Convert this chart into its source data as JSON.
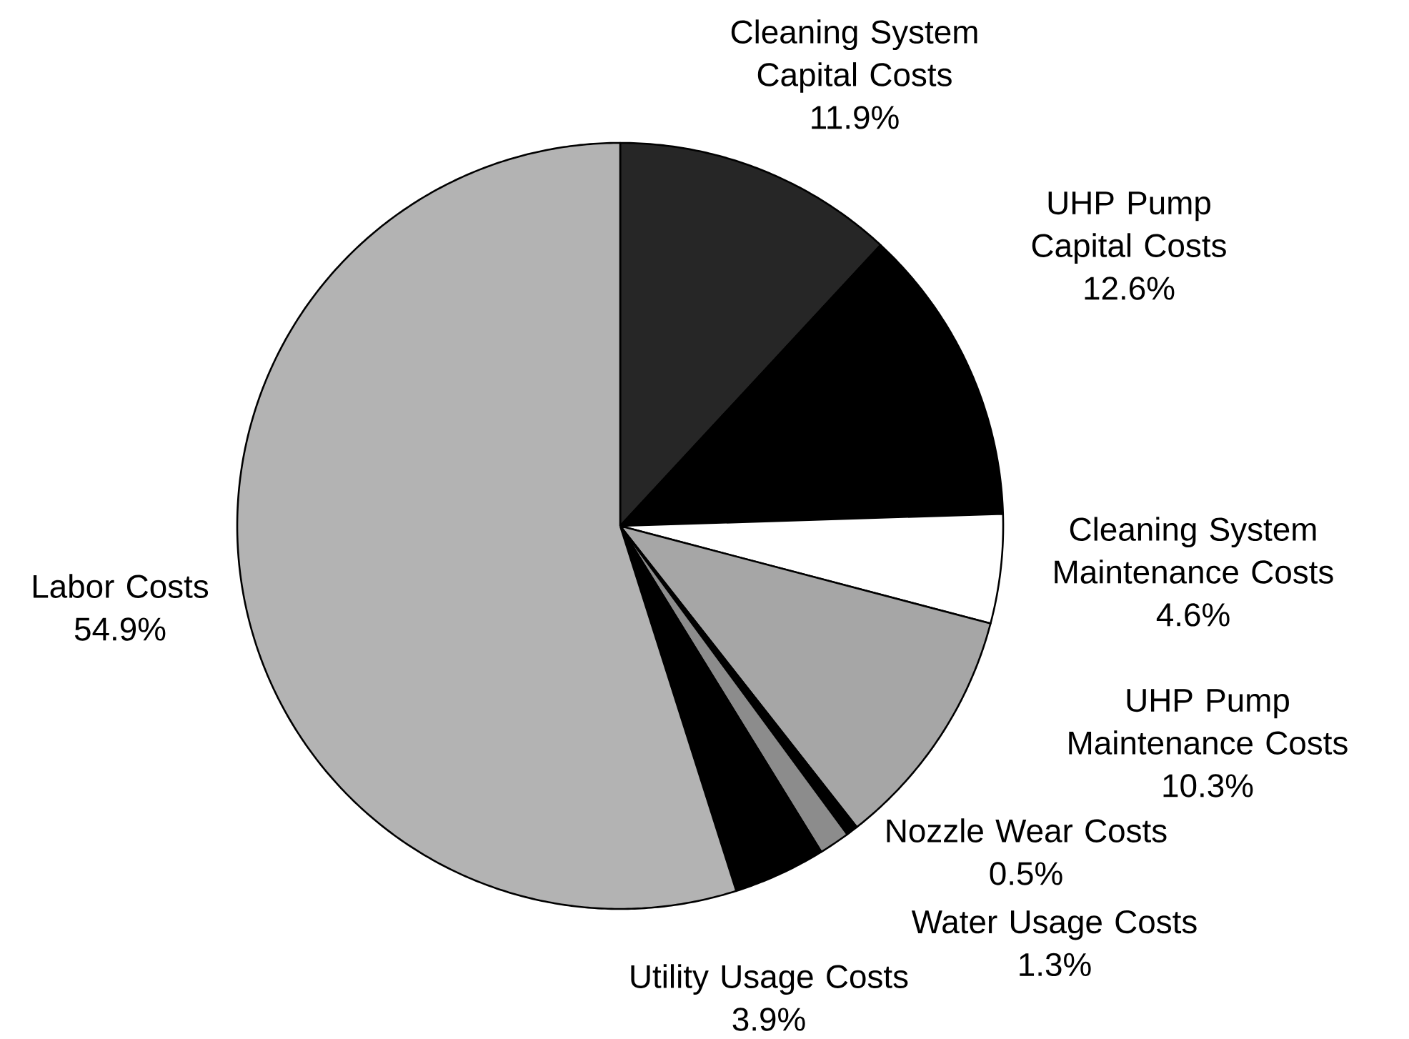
{
  "chart_data": {
    "type": "pie",
    "categories": [
      "Cleaning System Capital Costs",
      "UHP Pump Capital Costs",
      "Cleaning System Maintenance Costs",
      "UHP Pump Maintenance Costs",
      "Nozzle Wear Costs",
      "Water Usage Costs",
      "Utility Usage Costs",
      "Labor Costs"
    ],
    "values": [
      11.9,
      12.6,
      4.6,
      10.3,
      0.5,
      1.3,
      3.9,
      54.9
    ],
    "value_labels": [
      "11.9%",
      "12.6%",
      "4.6%",
      "10.3%",
      "0.5%",
      "1.3%",
      "3.9%",
      "54.9%"
    ],
    "colors": [
      "#262626",
      "#000000",
      "#ffffff",
      "#a6a6a6",
      "#000000",
      "#8c8c8c",
      "#000000",
      "#b3b3b3"
    ]
  }
}
